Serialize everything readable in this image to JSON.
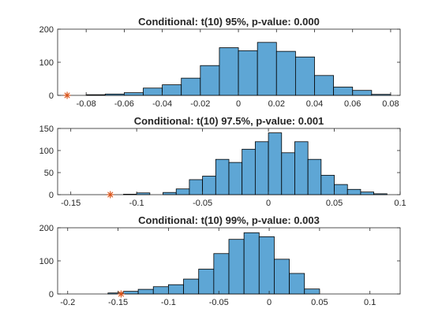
{
  "figure": {
    "background": "#ffffff",
    "bar_color": "#5ea6d5",
    "marker_color": "#d95319"
  },
  "chart_data": [
    {
      "type": "bar",
      "title": "Conditional: t(10) 95%, p-value: 0.000",
      "xlim": [
        -0.095,
        0.085
      ],
      "ylim": [
        0,
        200
      ],
      "xticks": [
        -0.08,
        -0.06,
        -0.04,
        -0.02,
        0,
        0.02,
        0.04,
        0.06,
        0.08
      ],
      "xtick_labels": [
        "-0.08",
        "-0.06",
        "-0.04",
        "-0.02",
        "0",
        "0.02",
        "0.04",
        "0.06",
        "0.08"
      ],
      "yticks": [
        0,
        100,
        200
      ],
      "ytick_labels": [
        "0",
        "100",
        "200"
      ],
      "bin_edges": [
        -0.08,
        -0.07,
        -0.06,
        -0.05,
        -0.04,
        -0.03,
        -0.02,
        -0.01,
        0.0,
        0.01,
        0.02,
        0.03,
        0.04,
        0.05,
        0.06,
        0.07,
        0.08
      ],
      "counts": [
        2,
        4,
        8,
        22,
        32,
        52,
        90,
        144,
        135,
        160,
        133,
        116,
        60,
        25,
        15,
        3
      ],
      "marker": {
        "x": -0.09,
        "y": 0,
        "symbol": "asterisk"
      }
    },
    {
      "type": "bar",
      "title": "Conditional: t(10) 97.5%, p-value: 0.001",
      "xlim": [
        -0.16,
        0.1
      ],
      "ylim": [
        0,
        150
      ],
      "xticks": [
        -0.15,
        -0.1,
        -0.05,
        0,
        0.05,
        0.1
      ],
      "xtick_labels": [
        "-0.15",
        "-0.1",
        "-0.05",
        "0",
        "0.05",
        "0.1"
      ],
      "yticks": [
        0,
        50,
        100,
        150
      ],
      "ytick_labels": [
        "0",
        "50",
        "100",
        "150"
      ],
      "bin_edges": [
        -0.11,
        -0.1,
        -0.09,
        -0.08,
        -0.07,
        -0.06,
        -0.05,
        -0.04,
        -0.03,
        -0.02,
        -0.01,
        0.0,
        0.01,
        0.02,
        0.03,
        0.04,
        0.05,
        0.06,
        0.07,
        0.08,
        0.09
      ],
      "counts": [
        1,
        4,
        0,
        5,
        13,
        34,
        42,
        80,
        73,
        103,
        120,
        140,
        95,
        120,
        80,
        44,
        23,
        12,
        6,
        2
      ],
      "marker": {
        "x": -0.12,
        "y": 0,
        "symbol": "asterisk"
      }
    },
    {
      "type": "bar",
      "title": "Conditional: t(10) 99%, p-value: 0.003",
      "xlim": [
        -0.21,
        0.13
      ],
      "ylim": [
        0,
        200
      ],
      "xticks": [
        -0.2,
        -0.15,
        -0.1,
        -0.05,
        0,
        0.05,
        0.1
      ],
      "xtick_labels": [
        "-0.2",
        "-0.15",
        "-0.1",
        "-0.05",
        "0",
        "0.05",
        "0.1"
      ],
      "yticks": [
        0,
        100,
        200
      ],
      "ytick_labels": [
        "0",
        "100",
        "200"
      ],
      "bin_edges": [
        -0.16,
        -0.145,
        -0.13,
        -0.115,
        -0.1,
        -0.085,
        -0.07,
        -0.055,
        -0.04,
        -0.025,
        -0.01,
        0.005,
        0.02,
        0.035,
        0.05,
        0.065,
        0.08,
        0.095
      ],
      "counts": [
        3,
        8,
        14,
        22,
        28,
        45,
        75,
        122,
        165,
        185,
        173,
        105,
        62,
        15,
        0,
        0,
        0
      ],
      "marker": {
        "x": -0.147,
        "y": 0,
        "symbol": "asterisk"
      }
    }
  ]
}
